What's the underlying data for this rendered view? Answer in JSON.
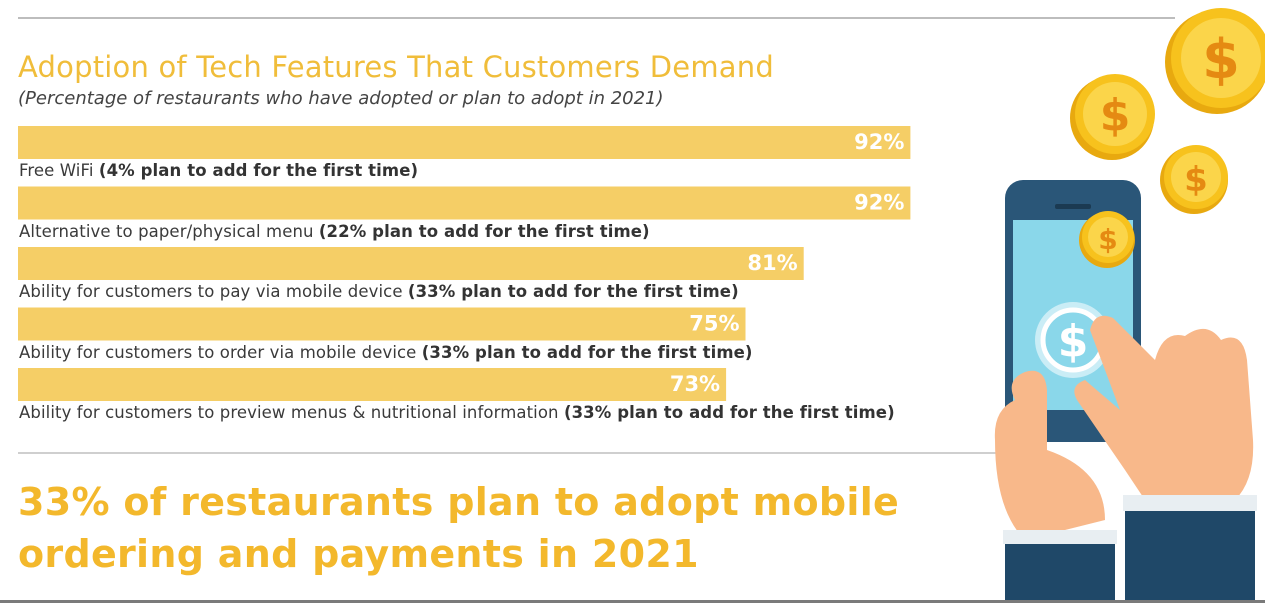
{
  "title": "Adoption of Tech Features That Customers Demand",
  "subtitle": "(Percentage of restaurants who have adopted or plan to adopt in 2021)",
  "headline_line1": "33% of restaurants plan to adopt mobile",
  "headline_line2": "ordering and payments in 2021",
  "colors": {
    "bar": "#f5ce66",
    "title": "#f0bd3a",
    "headline": "#f3b82c",
    "coin": "#f7c21d"
  },
  "illustration": {
    "coin_symbol": "$",
    "icons": [
      "coin-icon",
      "smartphone-icon",
      "hand-icon"
    ]
  },
  "chart_data": {
    "type": "bar",
    "orientation": "horizontal",
    "categories": [
      "Free WiFi",
      "Alternative to paper/physical menu",
      "Ability for customers to pay via mobile device",
      "Ability for customers to order via mobile device",
      "Ability for customers to preview menus & nutritional information"
    ],
    "notes": [
      "(4% plan to add for the first time)",
      "(22% plan to add for the first time)",
      "(33% plan to add for the first time)",
      "(33% plan to add for the first time)",
      "(33% plan to add for the first time)"
    ],
    "values": [
      92,
      92,
      81,
      75,
      73
    ],
    "value_labels": [
      "92%",
      "92%",
      "81%",
      "75%",
      "73%"
    ],
    "xlim": [
      0,
      100
    ],
    "grid": false
  }
}
